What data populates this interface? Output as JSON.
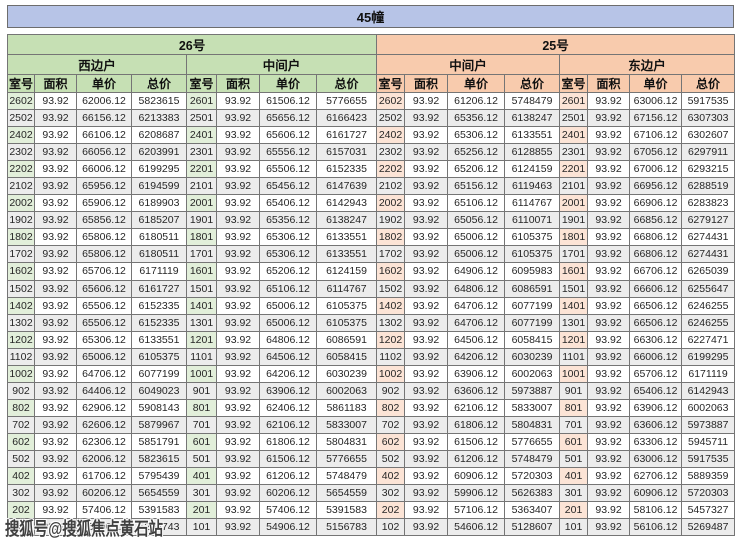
{
  "title": "45幢",
  "watermark": "搜狐号@搜狐焦点黄石站",
  "columns": [
    "室号",
    "面积",
    "单价",
    "总价"
  ],
  "colors": {
    "title_bg": "#b7c4e7",
    "building26_bg": "#c6e0b4",
    "building25_bg": "#f8cbad",
    "room_tint_left": "#e2efda",
    "room_tint_right": "#fce4d6",
    "alt_row_bg": "#ececec"
  },
  "buildings": [
    {
      "name": "26号",
      "units": [
        {
          "name": "西边户",
          "rows": [
            [
              "2602",
              "93.92",
              "62006.12",
              "5823615"
            ],
            [
              "2502",
              "93.92",
              "66156.12",
              "6213383"
            ],
            [
              "2402",
              "93.92",
              "66106.12",
              "6208687"
            ],
            [
              "2302",
              "93.92",
              "66056.12",
              "6203991"
            ],
            [
              "2202",
              "93.92",
              "66006.12",
              "6199295"
            ],
            [
              "2102",
              "93.92",
              "65956.12",
              "6194599"
            ],
            [
              "2002",
              "93.92",
              "65906.12",
              "6189903"
            ],
            [
              "1902",
              "93.92",
              "65856.12",
              "6185207"
            ],
            [
              "1802",
              "93.92",
              "65806.12",
              "6180511"
            ],
            [
              "1702",
              "93.92",
              "65806.12",
              "6180511"
            ],
            [
              "1602",
              "93.92",
              "65706.12",
              "6171119"
            ],
            [
              "1502",
              "93.92",
              "65606.12",
              "6161727"
            ],
            [
              "1402",
              "93.92",
              "65506.12",
              "6152335"
            ],
            [
              "1302",
              "93.92",
              "65506.12",
              "6152335"
            ],
            [
              "1202",
              "93.92",
              "65306.12",
              "6133551"
            ],
            [
              "1102",
              "93.92",
              "65006.12",
              "6105375"
            ],
            [
              "1002",
              "93.92",
              "64706.12",
              "6077199"
            ],
            [
              "902",
              "93.92",
              "64406.12",
              "6049023"
            ],
            [
              "802",
              "93.92",
              "62906.12",
              "5908143"
            ],
            [
              "702",
              "93.92",
              "62606.12",
              "5879967"
            ],
            [
              "602",
              "93.92",
              "62306.12",
              "5851791"
            ],
            [
              "502",
              "93.92",
              "62006.12",
              "5823615"
            ],
            [
              "402",
              "93.92",
              "61706.12",
              "5795439"
            ],
            [
              "302",
              "93.92",
              "60206.12",
              "5654559"
            ],
            [
              "202",
              "93.92",
              "57406.12",
              "5391583"
            ],
            [
              "102",
              "93.92",
              "55406.12",
              "5203743"
            ]
          ]
        },
        {
          "name": "中间户",
          "rows": [
            [
              "2601",
              "93.92",
              "61506.12",
              "5776655"
            ],
            [
              "2501",
              "93.92",
              "65656.12",
              "6166423"
            ],
            [
              "2401",
              "93.92",
              "65606.12",
              "6161727"
            ],
            [
              "2301",
              "93.92",
              "65556.12",
              "6157031"
            ],
            [
              "2201",
              "93.92",
              "65506.12",
              "6152335"
            ],
            [
              "2101",
              "93.92",
              "65456.12",
              "6147639"
            ],
            [
              "2001",
              "93.92",
              "65406.12",
              "6142943"
            ],
            [
              "1901",
              "93.92",
              "65356.12",
              "6138247"
            ],
            [
              "1801",
              "93.92",
              "65306.12",
              "6133551"
            ],
            [
              "1701",
              "93.92",
              "65306.12",
              "6133551"
            ],
            [
              "1601",
              "93.92",
              "65206.12",
              "6124159"
            ],
            [
              "1501",
              "93.92",
              "65106.12",
              "6114767"
            ],
            [
              "1401",
              "93.92",
              "65006.12",
              "6105375"
            ],
            [
              "1301",
              "93.92",
              "65006.12",
              "6105375"
            ],
            [
              "1201",
              "93.92",
              "64806.12",
              "6086591"
            ],
            [
              "1101",
              "93.92",
              "64506.12",
              "6058415"
            ],
            [
              "1001",
              "93.92",
              "64206.12",
              "6030239"
            ],
            [
              "901",
              "93.92",
              "63906.12",
              "6002063"
            ],
            [
              "801",
              "93.92",
              "62406.12",
              "5861183"
            ],
            [
              "701",
              "93.92",
              "62106.12",
              "5833007"
            ],
            [
              "601",
              "93.92",
              "61806.12",
              "5804831"
            ],
            [
              "501",
              "93.92",
              "61506.12",
              "5776655"
            ],
            [
              "401",
              "93.92",
              "61206.12",
              "5748479"
            ],
            [
              "301",
              "93.92",
              "60206.12",
              "5654559"
            ],
            [
              "201",
              "93.92",
              "57406.12",
              "5391583"
            ],
            [
              "101",
              "93.92",
              "54906.12",
              "5156783"
            ]
          ]
        }
      ]
    },
    {
      "name": "25号",
      "units": [
        {
          "name": "中间户",
          "rows": [
            [
              "2602",
              "93.92",
              "61206.12",
              "5748479"
            ],
            [
              "2502",
              "93.92",
              "65356.12",
              "6138247"
            ],
            [
              "2402",
              "93.92",
              "65306.12",
              "6133551"
            ],
            [
              "2302",
              "93.92",
              "65256.12",
              "6128855"
            ],
            [
              "2202",
              "93.92",
              "65206.12",
              "6124159"
            ],
            [
              "2102",
              "93.92",
              "65156.12",
              "6119463"
            ],
            [
              "2002",
              "93.92",
              "65106.12",
              "6114767"
            ],
            [
              "1902",
              "93.92",
              "65056.12",
              "6110071"
            ],
            [
              "1802",
              "93.92",
              "65006.12",
              "6105375"
            ],
            [
              "1702",
              "93.92",
              "65006.12",
              "6105375"
            ],
            [
              "1602",
              "93.92",
              "64906.12",
              "6095983"
            ],
            [
              "1502",
              "93.92",
              "64806.12",
              "6086591"
            ],
            [
              "1402",
              "93.92",
              "64706.12",
              "6077199"
            ],
            [
              "1302",
              "93.92",
              "64706.12",
              "6077199"
            ],
            [
              "1202",
              "93.92",
              "64506.12",
              "6058415"
            ],
            [
              "1102",
              "93.92",
              "64206.12",
              "6030239"
            ],
            [
              "1002",
              "93.92",
              "63906.12",
              "6002063"
            ],
            [
              "902",
              "93.92",
              "63606.12",
              "5973887"
            ],
            [
              "802",
              "93.92",
              "62106.12",
              "5833007"
            ],
            [
              "702",
              "93.92",
              "61806.12",
              "5804831"
            ],
            [
              "602",
              "93.92",
              "61506.12",
              "5776655"
            ],
            [
              "502",
              "93.92",
              "61206.12",
              "5748479"
            ],
            [
              "402",
              "93.92",
              "60906.12",
              "5720303"
            ],
            [
              "302",
              "93.92",
              "59906.12",
              "5626383"
            ],
            [
              "202",
              "93.92",
              "57106.12",
              "5363407"
            ],
            [
              "102",
              "93.92",
              "54606.12",
              "5128607"
            ]
          ]
        },
        {
          "name": "东边户",
          "rows": [
            [
              "2601",
              "93.92",
              "63006.12",
              "5917535"
            ],
            [
              "2501",
              "93.92",
              "67156.12",
              "6307303"
            ],
            [
              "2401",
              "93.92",
              "67106.12",
              "6302607"
            ],
            [
              "2301",
              "93.92",
              "67056.12",
              "6297911"
            ],
            [
              "2201",
              "93.92",
              "67006.12",
              "6293215"
            ],
            [
              "2101",
              "93.92",
              "66956.12",
              "6288519"
            ],
            [
              "2001",
              "93.92",
              "66906.12",
              "6283823"
            ],
            [
              "1901",
              "93.92",
              "66856.12",
              "6279127"
            ],
            [
              "1801",
              "93.92",
              "66806.12",
              "6274431"
            ],
            [
              "1701",
              "93.92",
              "66806.12",
              "6274431"
            ],
            [
              "1601",
              "93.92",
              "66706.12",
              "6265039"
            ],
            [
              "1501",
              "93.92",
              "66606.12",
              "6255647"
            ],
            [
              "1401",
              "93.92",
              "66506.12",
              "6246255"
            ],
            [
              "1301",
              "93.92",
              "66506.12",
              "6246255"
            ],
            [
              "1201",
              "93.92",
              "66306.12",
              "6227471"
            ],
            [
              "1101",
              "93.92",
              "66006.12",
              "6199295"
            ],
            [
              "1001",
              "93.92",
              "65706.12",
              "6171119"
            ],
            [
              "901",
              "93.92",
              "65406.12",
              "6142943"
            ],
            [
              "801",
              "93.92",
              "63906.12",
              "6002063"
            ],
            [
              "701",
              "93.92",
              "63606.12",
              "5973887"
            ],
            [
              "601",
              "93.92",
              "63306.12",
              "5945711"
            ],
            [
              "501",
              "93.92",
              "63006.12",
              "5917535"
            ],
            [
              "401",
              "93.92",
              "62706.12",
              "5889359"
            ],
            [
              "301",
              "93.92",
              "60906.12",
              "5720303"
            ],
            [
              "201",
              "93.92",
              "58106.12",
              "5457327"
            ],
            [
              "101",
              "93.92",
              "56106.12",
              "5269487"
            ]
          ]
        }
      ]
    }
  ]
}
